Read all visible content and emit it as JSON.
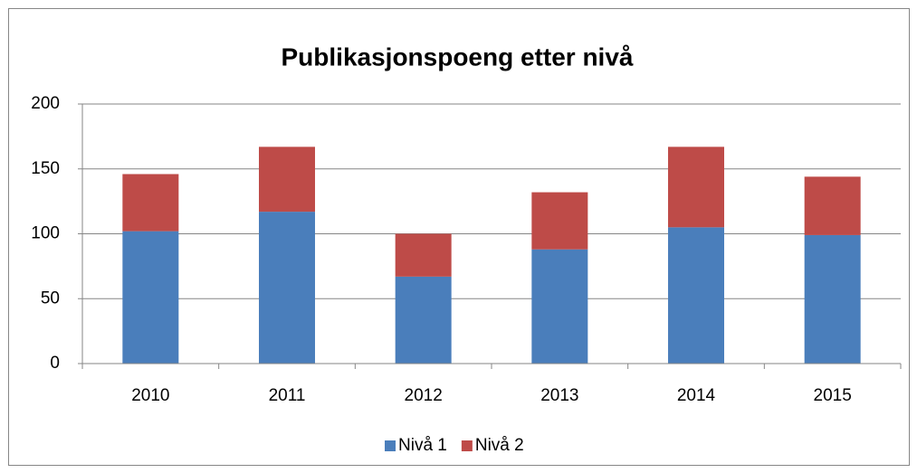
{
  "chart_data": {
    "type": "stacked_bar",
    "title": "Publikasjonspoeng etter nivå",
    "categories": [
      "2010",
      "2011",
      "2012",
      "2013",
      "2014",
      "2015"
    ],
    "series": [
      {
        "name": "Nivå 1",
        "color": "#4a7ebb",
        "values": [
          102,
          117,
          67,
          88,
          105,
          99
        ]
      },
      {
        "name": "Nivå 2",
        "color": "#be4b48",
        "values": [
          44,
          50,
          33,
          44,
          62,
          45
        ]
      }
    ],
    "ylim": [
      0,
      200
    ],
    "yticks": [
      0,
      50,
      100,
      150,
      200
    ],
    "grid": true,
    "legend": "bottom"
  }
}
